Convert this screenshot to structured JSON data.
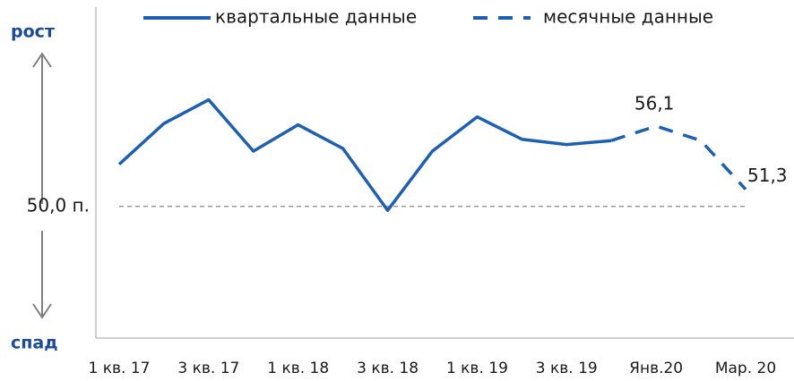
{
  "chart_data": {
    "type": "line",
    "categories": [
      "1 кв. 17",
      null,
      "3 кв. 17",
      null,
      "1 кв. 18",
      null,
      "3 кв. 18",
      null,
      "1 кв. 19",
      null,
      "3 кв. 19",
      null,
      "Янв.20",
      null,
      "Мар. 20"
    ],
    "series": [
      {
        "name": "квартальные данные",
        "color": "#1c5fb3",
        "style": "solid",
        "values": [
          53.2,
          56.3,
          58.1,
          54.2,
          56.2,
          54.4,
          49.7,
          54.2,
          56.8,
          55.1,
          54.7,
          55.0,
          null,
          null,
          null
        ]
      },
      {
        "name": "месячные данные",
        "color": "#1c5fb3",
        "style": "dashed",
        "values": [
          null,
          null,
          null,
          null,
          null,
          null,
          null,
          null,
          null,
          null,
          null,
          55.0,
          56.1,
          55.0,
          51.3
        ],
        "value_labels": [
          null,
          null,
          null,
          null,
          null,
          null,
          null,
          null,
          null,
          null,
          null,
          null,
          "56,1",
          null,
          "51,3"
        ]
      }
    ],
    "ylim": [
      40,
      65
    ],
    "reference": {
      "value": 50,
      "label": "50,0 п."
    },
    "y_top_label": "рост",
    "y_bottom_label": "спад",
    "legend": "top"
  }
}
